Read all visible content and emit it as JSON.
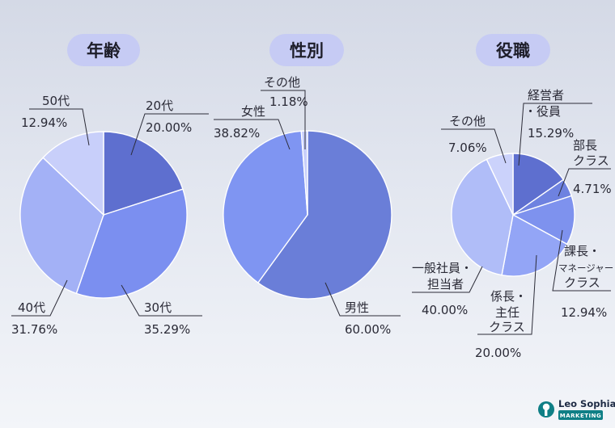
{
  "chart_data": [
    {
      "type": "pie",
      "title": "年齢",
      "slices": [
        {
          "label": "20代",
          "value": 20.0,
          "value_text": "20.00%",
          "color": "#5e6fcf"
        },
        {
          "label": "30代",
          "value": 35.29,
          "value_text": "35.29%",
          "color": "#7b8ff0"
        },
        {
          "label": "40代",
          "value": 31.76,
          "value_text": "31.76%",
          "color": "#a3b1f6"
        },
        {
          "label": "50代",
          "value": 12.94,
          "value_text": "12.94%",
          "color": "#c8cffa"
        }
      ]
    },
    {
      "type": "pie",
      "title": "性別",
      "slices": [
        {
          "label": "男性",
          "value": 60.0,
          "value_text": "60.00%",
          "color": "#6a7ed8"
        },
        {
          "label": "女性",
          "value": 38.82,
          "value_text": "38.82%",
          "color": "#7f95f2"
        },
        {
          "label": "その他",
          "value": 1.18,
          "value_text": "1.18%",
          "color": "#c8cffa"
        }
      ]
    },
    {
      "type": "pie",
      "title": "役職",
      "slices": [
        {
          "label": "経営者・役員",
          "value": 15.29,
          "value_text": "15.29%",
          "color": "#5e6fcf"
        },
        {
          "label": "部長クラス",
          "value": 4.71,
          "value_text": "4.71%",
          "color": "#6e82e0"
        },
        {
          "label": "課長・マネージャークラス",
          "value": 12.94,
          "value_text": "12.94%",
          "color": "#7e92ee"
        },
        {
          "label": "係長・主任クラス",
          "value": 20.0,
          "value_text": "20.00%",
          "color": "#93a5f6"
        },
        {
          "label": "一般社員・担当者",
          "value": 40.0,
          "value_text": "40.00%",
          "color": "#b0bdf8"
        },
        {
          "label": "その他",
          "value": 7.06,
          "value_text": "7.06%",
          "color": "#cbd2fb"
        }
      ]
    }
  ],
  "labels": {
    "age_20": [
      "20代",
      "20.00%"
    ],
    "age_30": [
      "30代",
      "35.29%"
    ],
    "age_40": [
      "40代",
      "31.76%"
    ],
    "age_50": [
      "50代",
      "12.94%"
    ],
    "sex_male": [
      "男性",
      "60.00%"
    ],
    "sex_female": [
      "女性",
      "38.82%"
    ],
    "sex_other": [
      "その他",
      "1.18%"
    ],
    "role_exec": [
      "経営者",
      "・役員",
      "15.29%"
    ],
    "role_bucho": [
      "部長",
      "クラス",
      "4.71%"
    ],
    "role_kacho": [
      "課長・",
      "マネージャー",
      "クラス",
      "12.94%"
    ],
    "role_kakaricho": [
      "係長・",
      "主任",
      "クラス",
      "20.00%"
    ],
    "role_general": [
      "一般社員・",
      "担当者",
      "40.00%"
    ],
    "role_other": [
      "その他",
      "7.06%"
    ]
  },
  "brand": {
    "name": "Leo Sophia",
    "tag": "MARKETING",
    "accent": "#0f7f86"
  }
}
